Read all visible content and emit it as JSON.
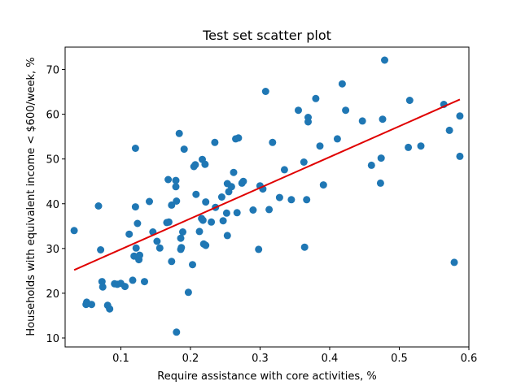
{
  "chart_data": {
    "type": "scatter",
    "title": "Test set scatter plot",
    "xlabel": "Require assistance with core activities, %",
    "ylabel": "Households with equivalent income < $600/week, %",
    "xlim": [
      0.02,
      0.6
    ],
    "ylim": [
      8.0,
      75.0
    ],
    "xticks": [
      0.1,
      0.2,
      0.3,
      0.4,
      0.5,
      0.6
    ],
    "xtick_labels": [
      "0.1",
      "0.2",
      "0.3",
      "0.4",
      "0.5",
      "0.6"
    ],
    "yticks": [
      10,
      20,
      30,
      40,
      50,
      60,
      70
    ],
    "ytick_labels": [
      "10",
      "20",
      "30",
      "40",
      "50",
      "60",
      "70"
    ],
    "grid": false,
    "legend": "none",
    "colors": {
      "points": "#1f77b4",
      "fit_line": "#e00000"
    },
    "fit_line": {
      "x": [
        0.033,
        0.587
      ],
      "y": [
        25.2,
        63.3
      ]
    },
    "points": [
      [
        0.033,
        34.0
      ],
      [
        0.05,
        17.5
      ],
      [
        0.051,
        18.0
      ],
      [
        0.058,
        17.5
      ],
      [
        0.068,
        39.5
      ],
      [
        0.071,
        29.7
      ],
      [
        0.073,
        22.6
      ],
      [
        0.074,
        21.4
      ],
      [
        0.081,
        17.3
      ],
      [
        0.084,
        16.5
      ],
      [
        0.091,
        22.1
      ],
      [
        0.095,
        22.0
      ],
      [
        0.1,
        22.2
      ],
      [
        0.106,
        21.5
      ],
      [
        0.112,
        33.2
      ],
      [
        0.117,
        22.9
      ],
      [
        0.119,
        28.3
      ],
      [
        0.121,
        52.4
      ],
      [
        0.121,
        39.3
      ],
      [
        0.122,
        30.1
      ],
      [
        0.124,
        35.6
      ],
      [
        0.125,
        28.0
      ],
      [
        0.126,
        27.5
      ],
      [
        0.127,
        28.5
      ],
      [
        0.134,
        22.6
      ],
      [
        0.141,
        40.5
      ],
      [
        0.146,
        33.7
      ],
      [
        0.152,
        31.6
      ],
      [
        0.156,
        30.1
      ],
      [
        0.166,
        35.8
      ],
      [
        0.168,
        45.4
      ],
      [
        0.169,
        35.9
      ],
      [
        0.173,
        27.1
      ],
      [
        0.173,
        39.7
      ],
      [
        0.179,
        45.2
      ],
      [
        0.179,
        43.8
      ],
      [
        0.18,
        40.6
      ],
      [
        0.18,
        11.3
      ],
      [
        0.184,
        55.7
      ],
      [
        0.186,
        32.3
      ],
      [
        0.186,
        29.8
      ],
      [
        0.187,
        30.2
      ],
      [
        0.189,
        33.7
      ],
      [
        0.191,
        52.2
      ],
      [
        0.197,
        20.2
      ],
      [
        0.203,
        26.4
      ],
      [
        0.205,
        48.3
      ],
      [
        0.207,
        48.7
      ],
      [
        0.208,
        42.1
      ],
      [
        0.213,
        33.8
      ],
      [
        0.216,
        36.7
      ],
      [
        0.217,
        49.9
      ],
      [
        0.218,
        36.3
      ],
      [
        0.219,
        31.0
      ],
      [
        0.221,
        48.8
      ],
      [
        0.222,
        30.7
      ],
      [
        0.222,
        40.4
      ],
      [
        0.23,
        35.9
      ],
      [
        0.235,
        53.7
      ],
      [
        0.236,
        39.2
      ],
      [
        0.245,
        41.5
      ],
      [
        0.247,
        36.2
      ],
      [
        0.252,
        37.9
      ],
      [
        0.253,
        44.5
      ],
      [
        0.253,
        32.9
      ],
      [
        0.255,
        42.7
      ],
      [
        0.259,
        43.8
      ],
      [
        0.262,
        47.0
      ],
      [
        0.265,
        54.5
      ],
      [
        0.267,
        38.0
      ],
      [
        0.269,
        54.7
      ],
      [
        0.274,
        44.6
      ],
      [
        0.276,
        45.0
      ],
      [
        0.29,
        38.6
      ],
      [
        0.298,
        29.8
      ],
      [
        0.3,
        44.0
      ],
      [
        0.304,
        43.3
      ],
      [
        0.308,
        65.1
      ],
      [
        0.313,
        38.7
      ],
      [
        0.318,
        53.7
      ],
      [
        0.328,
        41.4
      ],
      [
        0.335,
        47.6
      ],
      [
        0.345,
        40.9
      ],
      [
        0.355,
        60.9
      ],
      [
        0.363,
        49.3
      ],
      [
        0.364,
        30.3
      ],
      [
        0.367,
        40.9
      ],
      [
        0.369,
        59.3
      ],
      [
        0.369,
        58.3
      ],
      [
        0.38,
        63.5
      ],
      [
        0.386,
        52.9
      ],
      [
        0.391,
        44.2
      ],
      [
        0.411,
        54.5
      ],
      [
        0.418,
        66.8
      ],
      [
        0.423,
        60.9
      ],
      [
        0.447,
        58.5
      ],
      [
        0.46,
        48.6
      ],
      [
        0.473,
        44.6
      ],
      [
        0.474,
        50.2
      ],
      [
        0.476,
        58.9
      ],
      [
        0.479,
        72.1
      ],
      [
        0.513,
        52.6
      ],
      [
        0.515,
        63.1
      ],
      [
        0.531,
        52.9
      ],
      [
        0.564,
        62.2
      ],
      [
        0.572,
        56.4
      ],
      [
        0.579,
        26.9
      ],
      [
        0.587,
        59.6
      ],
      [
        0.587,
        50.6
      ]
    ]
  }
}
